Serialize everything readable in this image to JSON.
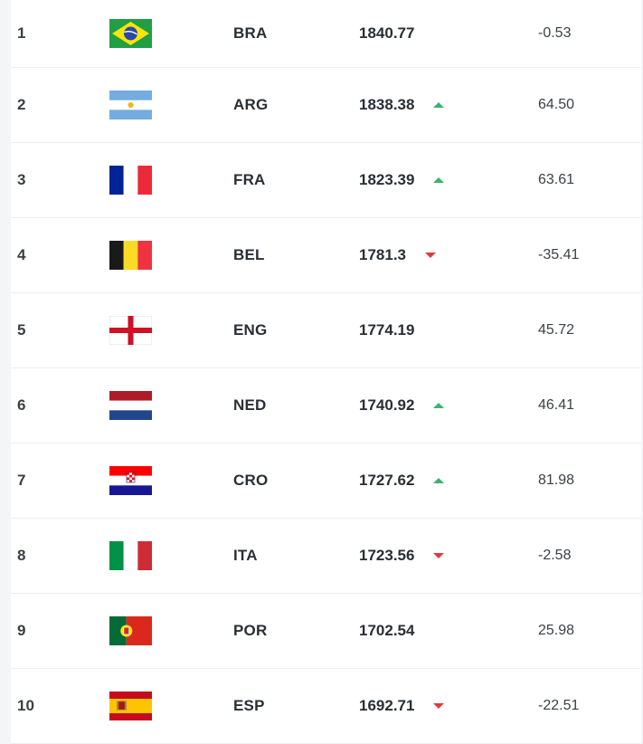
{
  "colors": {
    "up": "#3cb371",
    "down": "#e03a3e"
  },
  "rows": [
    {
      "rank": "1",
      "flag_icon": "brazil-flag-icon",
      "code": "BRA",
      "points": "1840.77",
      "trend": "none",
      "change": "-0.53"
    },
    {
      "rank": "2",
      "flag_icon": "argentina-flag-icon",
      "code": "ARG",
      "points": "1838.38",
      "trend": "up",
      "change": "64.50"
    },
    {
      "rank": "3",
      "flag_icon": "france-flag-icon",
      "code": "FRA",
      "points": "1823.39",
      "trend": "up",
      "change": "63.61"
    },
    {
      "rank": "4",
      "flag_icon": "belgium-flag-icon",
      "code": "BEL",
      "points": "1781.3",
      "trend": "down",
      "change": "-35.41"
    },
    {
      "rank": "5",
      "flag_icon": "england-flag-icon",
      "code": "ENG",
      "points": "1774.19",
      "trend": "none",
      "change": "45.72"
    },
    {
      "rank": "6",
      "flag_icon": "netherlands-flag-icon",
      "code": "NED",
      "points": "1740.92",
      "trend": "up",
      "change": "46.41"
    },
    {
      "rank": "7",
      "flag_icon": "croatia-flag-icon",
      "code": "CRO",
      "points": "1727.62",
      "trend": "up",
      "change": "81.98"
    },
    {
      "rank": "8",
      "flag_icon": "italy-flag-icon",
      "code": "ITA",
      "points": "1723.56",
      "trend": "down",
      "change": "-2.58"
    },
    {
      "rank": "9",
      "flag_icon": "portugal-flag-icon",
      "code": "POR",
      "points": "1702.54",
      "trend": "none",
      "change": "25.98"
    },
    {
      "rank": "10",
      "flag_icon": "spain-flag-icon",
      "code": "ESP",
      "points": "1692.71",
      "trend": "down",
      "change": "-22.51"
    }
  ]
}
